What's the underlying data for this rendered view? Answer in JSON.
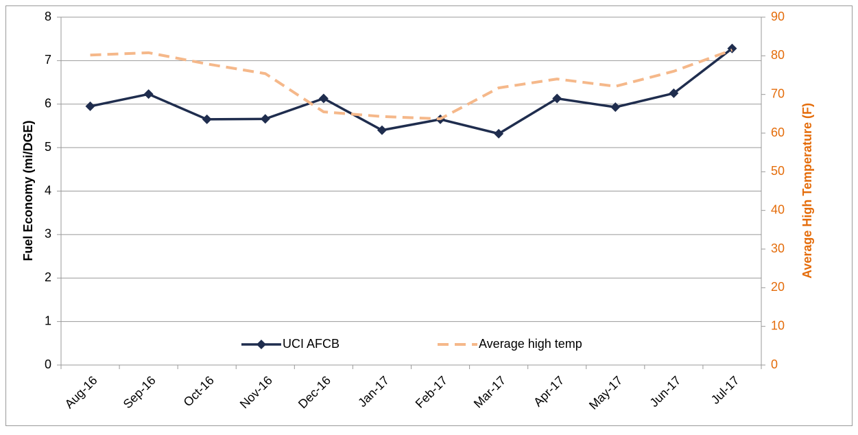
{
  "chart_data": {
    "type": "line",
    "categories": [
      "Aug-16",
      "Sep-16",
      "Oct-16",
      "Nov-16",
      "Dec-16",
      "Jan-17",
      "Feb-17",
      "Mar-17",
      "Apr-17",
      "May-17",
      "Jun-17",
      "Jul-17"
    ],
    "y_label": "Fuel Economy (mi/DGE)",
    "y2_label": "Average High Temperature (F)",
    "ylim": [
      0,
      8
    ],
    "yticks": [
      0,
      1,
      2,
      3,
      4,
      5,
      6,
      7,
      8
    ],
    "y2lim": [
      0,
      90
    ],
    "y2ticks": [
      0,
      10,
      20,
      30,
      40,
      50,
      60,
      70,
      80,
      90
    ],
    "y2_color": "#e46c0a",
    "grid": true,
    "legend": "bottom",
    "series": [
      {
        "name": "UCI AFCB",
        "color": "#1f2d4e",
        "dashed": false,
        "marker": "diamond",
        "values": [
          5.95,
          6.23,
          5.65,
          5.66,
          6.13,
          5.4,
          5.65,
          5.32,
          6.13,
          5.93,
          6.25,
          7.28
        ]
      },
      {
        "name": "Average high temp",
        "color": "#f5b88a",
        "dashed": true,
        "axis": "y2",
        "values": [
          80.2,
          80.8,
          77.9,
          75.4,
          65.5,
          64.3,
          63.7,
          71.7,
          74.0,
          72.1,
          76.0,
          81.5
        ]
      }
    ]
  }
}
